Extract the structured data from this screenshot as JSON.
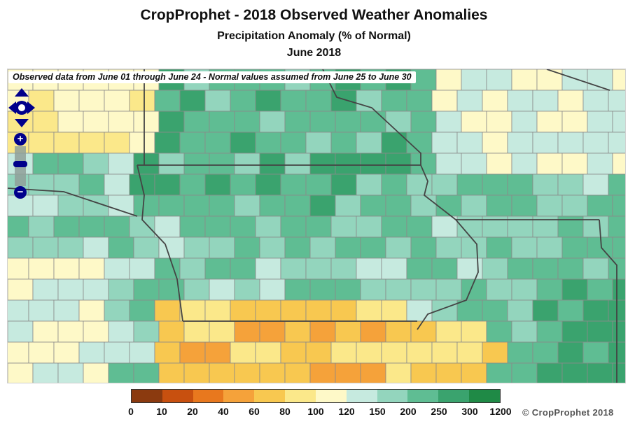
{
  "title": "CropProphet - 2018 Observed Weather Anomalies",
  "subtitle": "Precipitation Anomaly (% of Normal)",
  "period": "June 2018",
  "note": "Observed data from June 01 through June 24 - Normal values assumed from June 25 to June 30",
  "copyright": "© CropProphet 2018",
  "controls": {
    "pan_icon": "pan-arrows-icon",
    "zoom_in_label": "+",
    "zoom_out_label": "−"
  },
  "legend": {
    "breaks": [
      "0",
      "10",
      "20",
      "40",
      "60",
      "80",
      "100",
      "120",
      "150",
      "200",
      "250",
      "300",
      "1200"
    ],
    "colors": [
      "#8b3a0f",
      "#c8500f",
      "#e8781e",
      "#f5a23a",
      "#f8c850",
      "#fbe88a",
      "#fef9c8",
      "#c6eadf",
      "#93d5bd",
      "#5fbd93",
      "#3aa36e",
      "#1f8a46",
      "#0b5e1e"
    ]
  },
  "map_colors": {
    "dark_green": "#3aa36e",
    "green": "#5fbd93",
    "light_green": "#93d5bd",
    "pale": "#c6eadf",
    "cream": "#fef9c8",
    "yellow": "#fbe88a",
    "gold": "#f8c850",
    "orange": "#f5a23a"
  }
}
